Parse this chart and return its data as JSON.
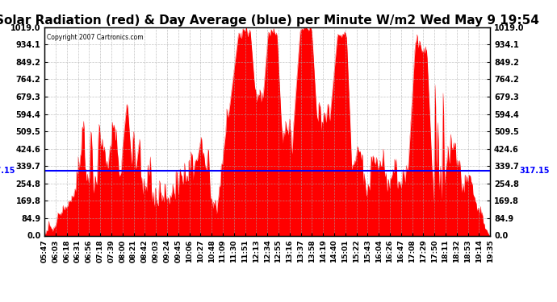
{
  "title": "Solar Radiation (red) & Day Average (blue) per Minute W/m2 Wed May 9 19:54",
  "copyright_text": "Copyright 2007 Cartronics.com",
  "y_max": 1019.0,
  "y_min": 0.0,
  "y_ticks": [
    0.0,
    84.9,
    169.8,
    254.8,
    339.7,
    424.6,
    509.5,
    594.4,
    679.3,
    764.2,
    849.2,
    934.1,
    1019.0
  ],
  "day_average": 317.15,
  "x_tick_labels": [
    "05:47",
    "06:03",
    "06:18",
    "06:31",
    "06:56",
    "07:18",
    "07:39",
    "08:00",
    "08:21",
    "08:42",
    "09:03",
    "09:24",
    "09:45",
    "10:06",
    "10:27",
    "10:48",
    "11:09",
    "11:30",
    "11:51",
    "12:13",
    "12:34",
    "12:55",
    "13:16",
    "13:37",
    "13:58",
    "14:19",
    "14:40",
    "15:01",
    "15:22",
    "15:43",
    "16:04",
    "16:26",
    "16:47",
    "17:08",
    "17:29",
    "17:50",
    "18:11",
    "18:32",
    "18:53",
    "19:14",
    "19:35"
  ],
  "bar_color": "#FF0000",
  "line_color": "#0000FF",
  "background_color": "#FFFFFF",
  "grid_color": "#AAAAAA",
  "title_fontsize": 11,
  "tick_fontsize": 7,
  "avg_label": "317.15"
}
